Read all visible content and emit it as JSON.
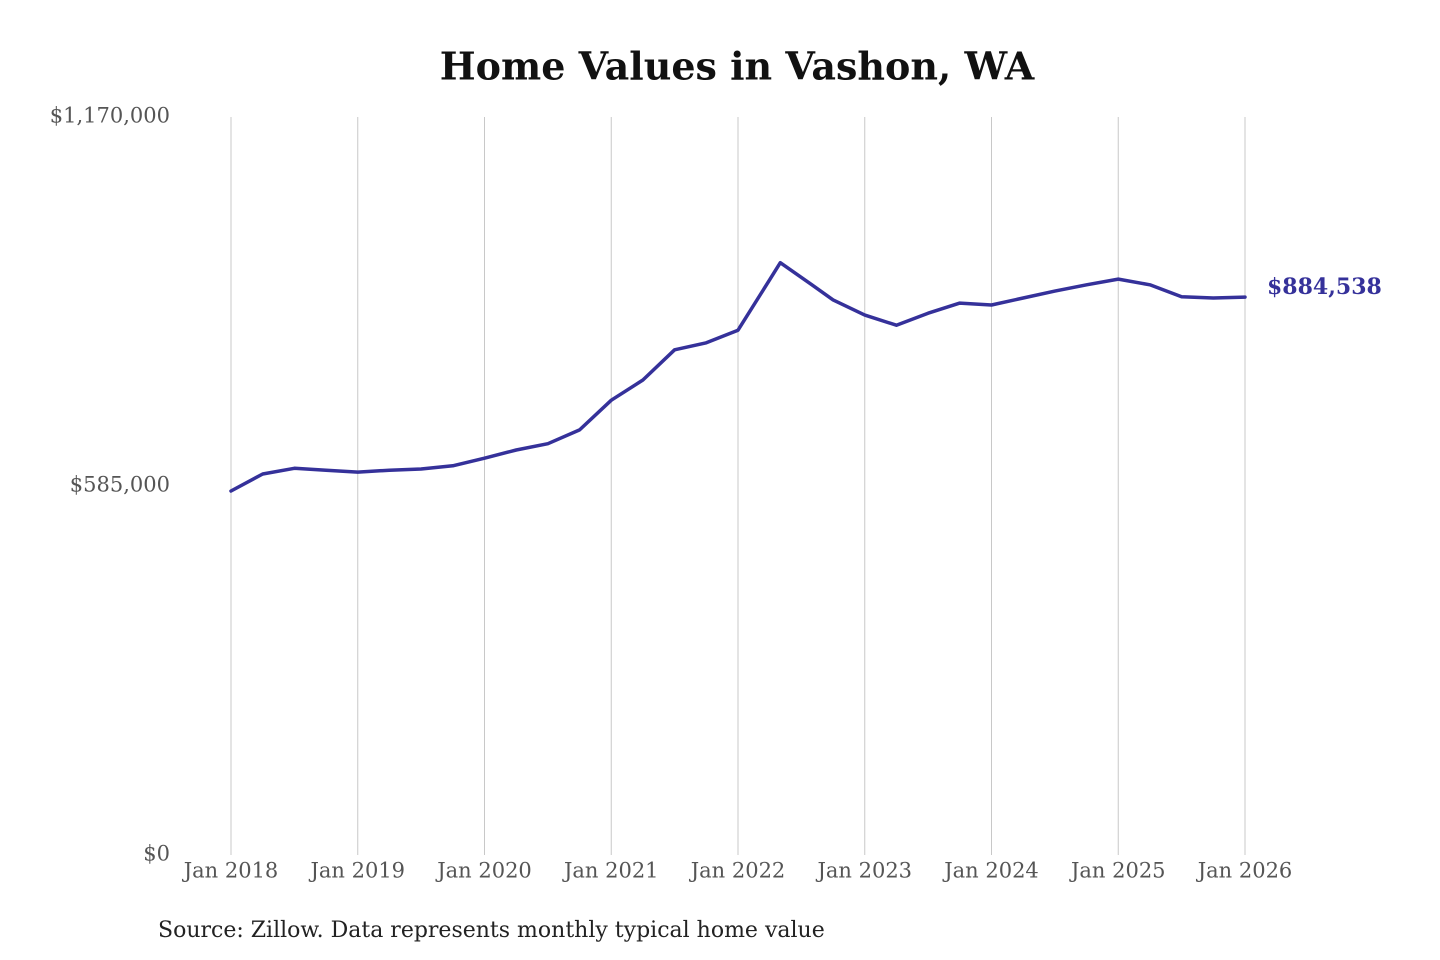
{
  "chart_data": {
    "type": "line",
    "title": "Home Values in Vashon, WA",
    "source": "Source: Zillow. Data represents monthly typical home value",
    "x": [
      "2018-01",
      "2018-04",
      "2018-07",
      "2018-10",
      "2019-01",
      "2019-04",
      "2019-07",
      "2019-10",
      "2020-01",
      "2020-04",
      "2020-07",
      "2020-10",
      "2021-01",
      "2021-04",
      "2021-07",
      "2021-10",
      "2022-01",
      "2022-04",
      "2022-05",
      "2022-08",
      "2022-10",
      "2023-01",
      "2023-04",
      "2023-07",
      "2023-10",
      "2024-01",
      "2024-04",
      "2024-07",
      "2024-10",
      "2025-01",
      "2025-04",
      "2025-07",
      "2025-10",
      "2026-01"
    ],
    "series": [
      {
        "name": "Home value",
        "color": "#35319a",
        "values": [
          577000,
          604000,
          613000,
          610000,
          607000,
          610000,
          612000,
          617000,
          629000,
          642000,
          652000,
          674000,
          721000,
          753000,
          801000,
          812000,
          832000,
          912000,
          939000,
          904000,
          880000,
          856000,
          840000,
          859000,
          875000,
          872000,
          883000,
          894000,
          904000,
          913000,
          904000,
          885000,
          883000,
          884538
        ],
        "value_labels": [
          null,
          null,
          null,
          null,
          null,
          null,
          null,
          null,
          null,
          null,
          null,
          null,
          null,
          null,
          null,
          null,
          null,
          null,
          null,
          null,
          null,
          null,
          null,
          null,
          null,
          null,
          null,
          null,
          null,
          null,
          null,
          null,
          null,
          "$884,538"
        ]
      }
    ],
    "ylim": [
      0,
      1170000
    ],
    "yticks": [
      {
        "value": 0,
        "label": "$0"
      },
      {
        "value": 585000,
        "label": "$585,000"
      },
      {
        "value": 1170000,
        "label": "$1,170,000"
      }
    ],
    "xlim": [
      "2018-01",
      "2026-01"
    ],
    "xticks": [
      {
        "value": "2018-01",
        "label": "Jan 2018"
      },
      {
        "value": "2019-01",
        "label": "Jan 2019"
      },
      {
        "value": "2020-01",
        "label": "Jan 2020"
      },
      {
        "value": "2021-01",
        "label": "Jan 2021"
      },
      {
        "value": "2022-01",
        "label": "Jan 2022"
      },
      {
        "value": "2023-01",
        "label": "Jan 2023"
      },
      {
        "value": "2024-01",
        "label": "Jan 2024"
      },
      {
        "value": "2025-01",
        "label": "Jan 2025"
      },
      {
        "value": "2026-01",
        "label": "Jan 2026"
      }
    ],
    "grid": "x"
  }
}
